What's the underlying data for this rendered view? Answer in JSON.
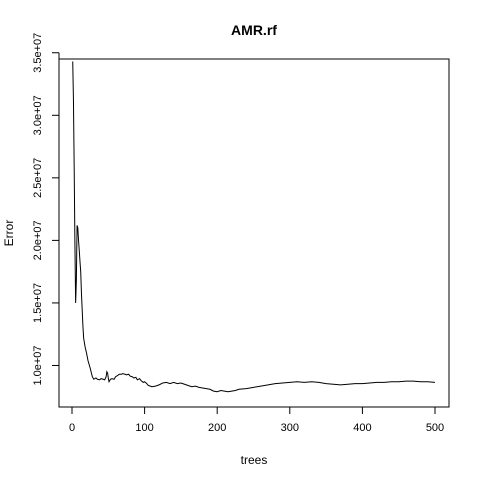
{
  "chart_data": {
    "type": "line",
    "title": "AMR.rf",
    "xlabel": "trees",
    "ylabel": "Error",
    "xlim": [
      0,
      500
    ],
    "ylim": [
      7800000,
      34500000
    ],
    "x_ticks": [
      0,
      100,
      200,
      300,
      400,
      500
    ],
    "x_tick_labels": [
      "0",
      "100",
      "200",
      "300",
      "400",
      "500"
    ],
    "y_ticks": [
      10000000,
      15000000,
      20000000,
      25000000,
      30000000,
      35000000
    ],
    "y_tick_labels": [
      "1.0e+07",
      "1.5e+07",
      "2.0e+07",
      "2.5e+07",
      "3.0e+07",
      "3.5e+07"
    ],
    "grid": false,
    "line_color": "#000000",
    "series": [
      {
        "x": [
          1,
          2,
          3,
          4,
          5,
          6,
          7,
          8,
          9,
          10,
          11,
          12,
          13,
          14,
          15,
          16,
          18,
          20,
          22,
          25,
          28,
          30,
          33,
          35,
          38,
          40,
          43,
          45,
          47,
          48,
          49,
          50,
          51,
          52,
          53,
          55,
          58,
          60,
          63,
          65,
          68,
          70,
          73,
          75,
          78,
          80,
          83,
          85,
          88,
          90,
          93,
          95,
          98,
          100,
          103,
          105,
          108,
          110,
          115,
          120,
          125,
          130,
          135,
          140,
          145,
          150,
          155,
          160,
          165,
          170,
          175,
          180,
          185,
          190,
          195,
          200,
          205,
          210,
          215,
          220,
          225,
          230,
          240,
          250,
          260,
          270,
          280,
          290,
          300,
          310,
          320,
          330,
          340,
          350,
          360,
          370,
          380,
          390,
          400,
          410,
          420,
          430,
          440,
          450,
          460,
          470,
          480,
          490,
          500
        ],
        "values": [
          34300000,
          31200000,
          25800000,
          19800000,
          15000000,
          16800000,
          21200000,
          21000000,
          20000000,
          19200000,
          18300000,
          17500000,
          15800000,
          14500000,
          13200000,
          12200000,
          11500000,
          11000000,
          10400000,
          9800000,
          9100000,
          8900000,
          9000000,
          8900000,
          8850000,
          8950000,
          8900000,
          8850000,
          9100000,
          9500000,
          9400000,
          9000000,
          8700000,
          8800000,
          8900000,
          8950000,
          8900000,
          9100000,
          9200000,
          9300000,
          9300000,
          9350000,
          9300000,
          9250000,
          9300000,
          9150000,
          9100000,
          9000000,
          9050000,
          8850000,
          8950000,
          8800000,
          8650000,
          8700000,
          8550000,
          8400000,
          8350000,
          8300000,
          8350000,
          8450000,
          8600000,
          8650000,
          8550000,
          8650000,
          8550000,
          8600000,
          8500000,
          8400000,
          8300000,
          8350000,
          8250000,
          8200000,
          8150000,
          8100000,
          7950000,
          7900000,
          8000000,
          7950000,
          7900000,
          7950000,
          8000000,
          8100000,
          8150000,
          8250000,
          8350000,
          8450000,
          8550000,
          8600000,
          8650000,
          8700000,
          8650000,
          8700000,
          8650000,
          8550000,
          8500000,
          8450000,
          8500000,
          8550000,
          8550000,
          8600000,
          8650000,
          8650000,
          8700000,
          8700000,
          8750000,
          8750000,
          8700000,
          8700000,
          8650000
        ]
      }
    ]
  }
}
